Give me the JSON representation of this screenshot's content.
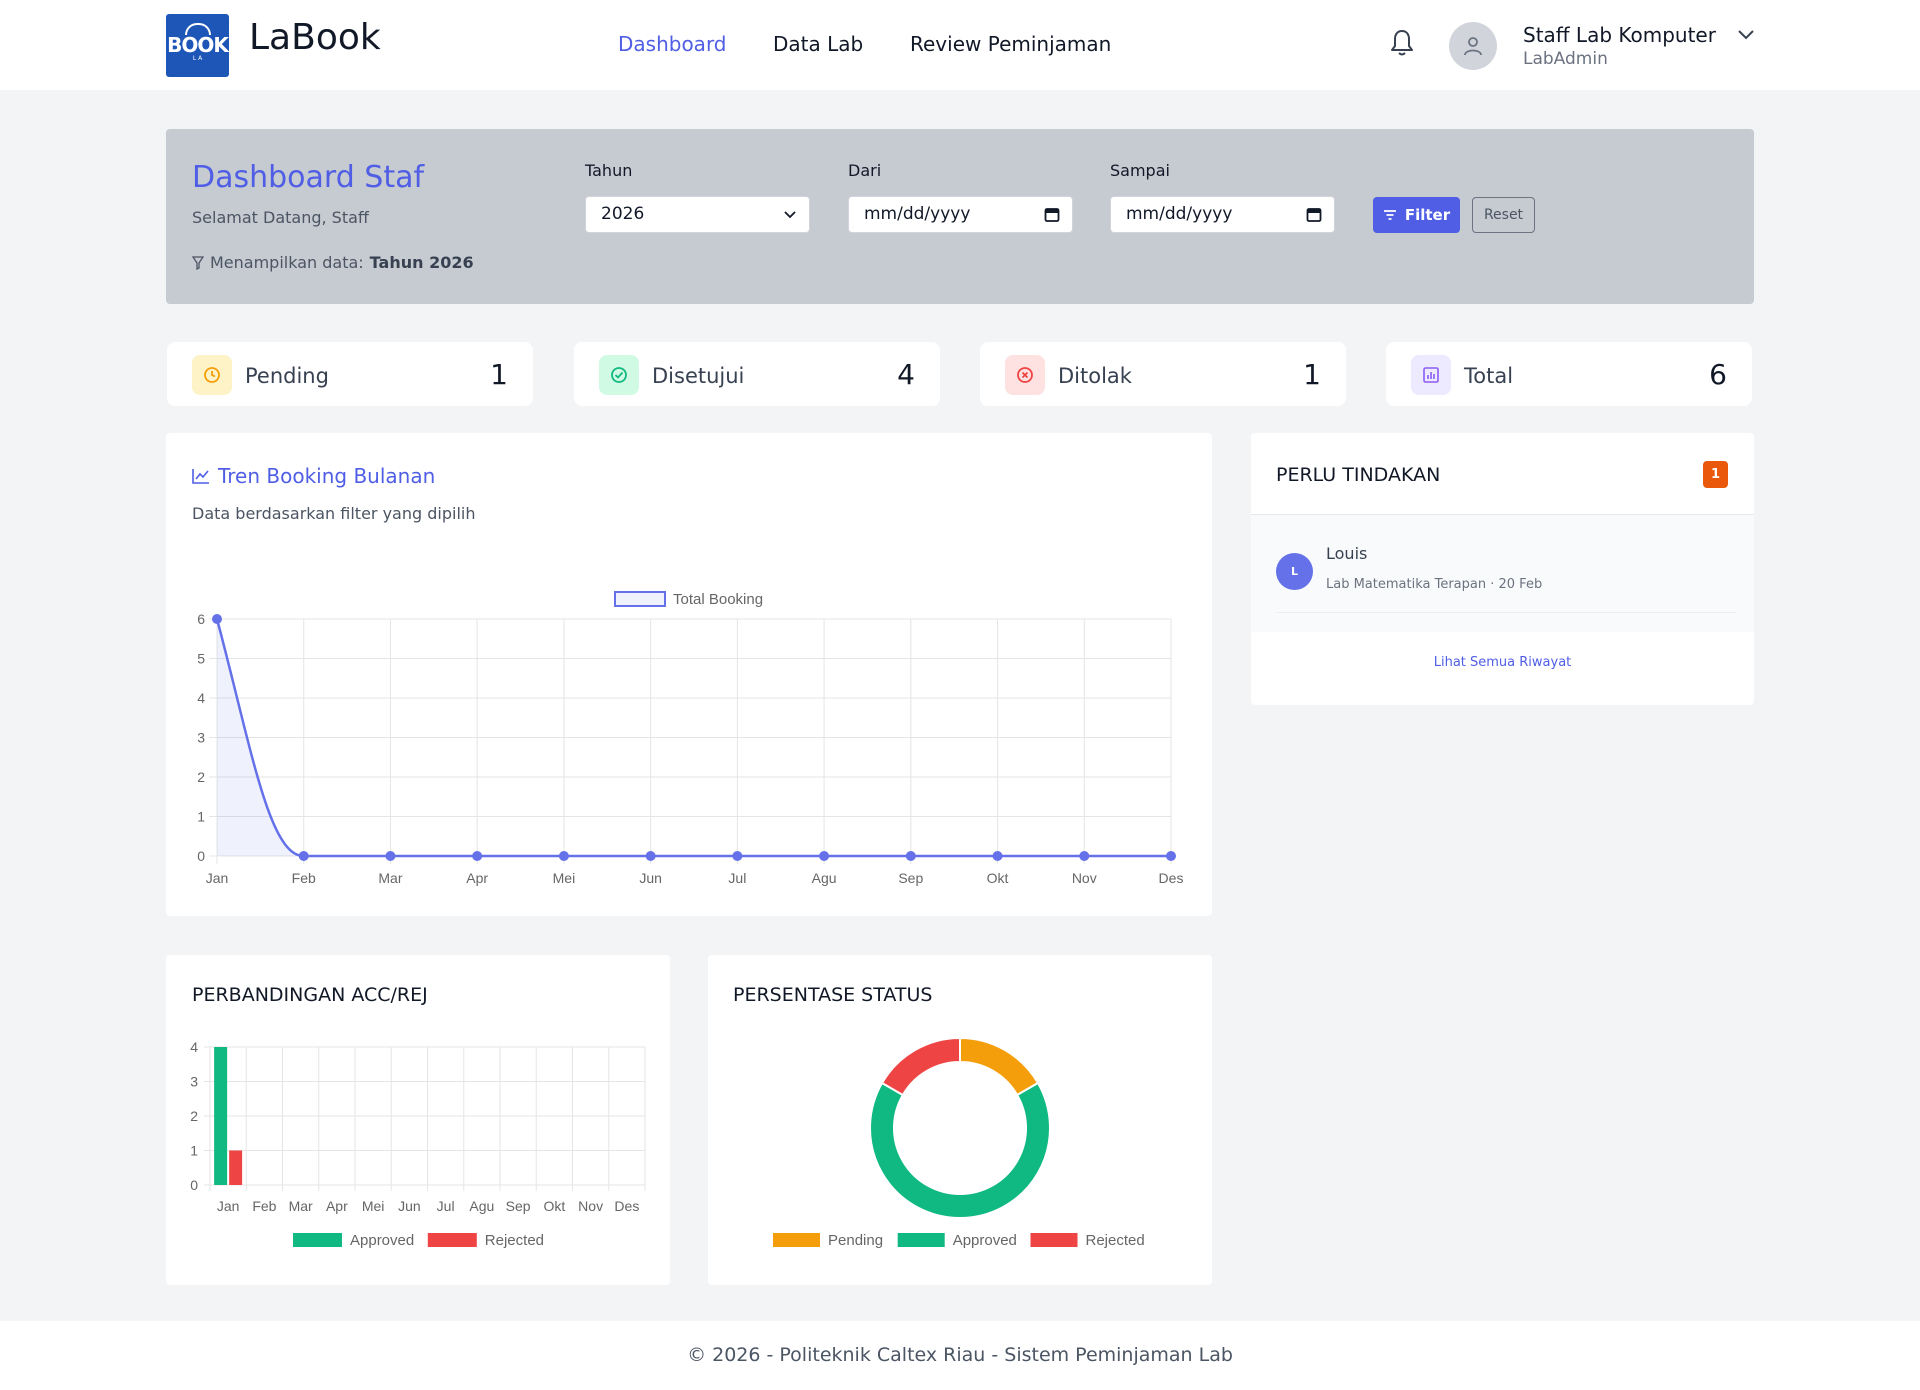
{
  "header": {
    "brand": "LaBook",
    "logo_text": "BOOK",
    "logo_sub": "L A",
    "nav": [
      {
        "label": "Dashboard",
        "active": true
      },
      {
        "label": "Data Lab",
        "active": false
      },
      {
        "label": "Review Peminjaman",
        "active": false
      }
    ],
    "user_name": "Staff Lab Komputer",
    "user_role": "LabAdmin"
  },
  "filter_panel": {
    "title": "Dashboard Staf",
    "subtitle": "Selamat Datang, Staff",
    "info_prefix": "Menampilkan data:",
    "info_value": "Tahun 2026",
    "year_label": "Tahun",
    "year_value": "2026",
    "from_label": "Dari",
    "from_placeholder": "mm/dd/yyyy",
    "to_label": "Sampai",
    "to_placeholder": "mm/dd/yyyy",
    "filter_button": "Filter",
    "reset_button": "Reset"
  },
  "stats": [
    {
      "label": "Pending",
      "value": "1",
      "color": "#f59e0b"
    },
    {
      "label": "Disetujui",
      "value": "4",
      "color": "#10b981"
    },
    {
      "label": "Ditolak",
      "value": "1",
      "color": "#ef4444"
    },
    {
      "label": "Total",
      "value": "6",
      "color": "#8b5cf6"
    }
  ],
  "trend": {
    "title": "Tren Booking Bulanan",
    "subtitle": "Data berdasarkan filter yang dipilih"
  },
  "perlu_tindakan": {
    "title": "PERLU TINDAKAN",
    "count": "1",
    "items": [
      {
        "initial": "L",
        "name": "Louis",
        "meta": "Lab Matematika Terapan · 20 Feb"
      }
    ],
    "link": "Lihat Semua Riwayat"
  },
  "acc_rej": {
    "title": "PERBANDINGAN ACC/REJ"
  },
  "status_pct": {
    "title": "PERSENTASE STATUS"
  },
  "footer": "© 2026 - Politeknik Caltex Riau - Sistem Peminjaman Lab",
  "chart_data": [
    {
      "type": "line",
      "categories": [
        "Jan",
        "Feb",
        "Mar",
        "Apr",
        "Mei",
        "Jun",
        "Jul",
        "Agu",
        "Sep",
        "Okt",
        "Nov",
        "Des"
      ],
      "series": [
        {
          "name": "Total Booking",
          "values": [
            6,
            0,
            0,
            0,
            0,
            0,
            0,
            0,
            0,
            0,
            0,
            0
          ],
          "color": "#6471e8"
        }
      ],
      "ylim": [
        0,
        6
      ],
      "yticks": [
        0,
        1,
        2,
        3,
        4,
        5,
        6
      ],
      "legend": "top",
      "grid": true
    },
    {
      "type": "bar",
      "categories": [
        "Jan",
        "Feb",
        "Mar",
        "Apr",
        "Mei",
        "Jun",
        "Jul",
        "Agu",
        "Sep",
        "Okt",
        "Nov",
        "Des"
      ],
      "series": [
        {
          "name": "Approved",
          "values": [
            4,
            0,
            0,
            0,
            0,
            0,
            0,
            0,
            0,
            0,
            0,
            0
          ],
          "color": "#10b981"
        },
        {
          "name": "Rejected",
          "values": [
            1,
            0,
            0,
            0,
            0,
            0,
            0,
            0,
            0,
            0,
            0,
            0
          ],
          "color": "#ef4444"
        }
      ],
      "ylim": [
        0,
        4
      ],
      "yticks": [
        0,
        1,
        2,
        3,
        4
      ],
      "legend": "bottom",
      "grid": true
    },
    {
      "type": "pie",
      "donut": true,
      "labels": [
        "Pending",
        "Approved",
        "Rejected"
      ],
      "values": [
        1,
        4,
        1
      ],
      "colors": [
        "#f59e0b",
        "#10b981",
        "#ef4444"
      ],
      "legend": "bottom"
    }
  ]
}
